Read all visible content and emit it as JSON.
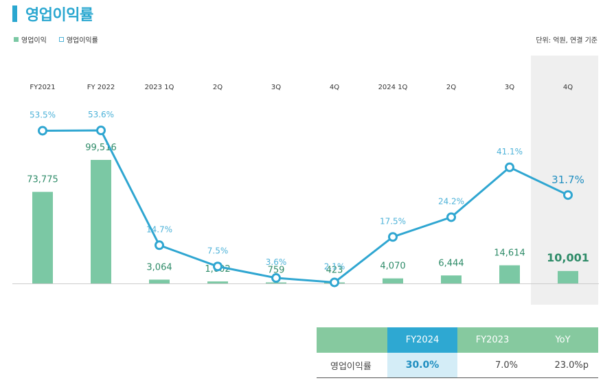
{
  "title": "영업이익률",
  "legend": {
    "bar_label": "영업이익",
    "line_label": "영업이익률"
  },
  "unit": "단위: 억원, 연결 기준",
  "chart_data": {
    "type": "bar",
    "categories": [
      "FY2021",
      "FY 2022",
      "2023 1Q",
      "2Q",
      "3Q",
      "4Q",
      "2024 1Q",
      "2Q",
      "3Q",
      "4Q"
    ],
    "series": [
      {
        "name": "영업이익",
        "type": "bar",
        "values": [
          73775,
          99516,
          3064,
          1602,
          759,
          423,
          4070,
          6444,
          14614,
          10001
        ],
        "labels": [
          "73,775",
          "99,516",
          "3,064",
          "1,602",
          "759",
          "423",
          "4,070",
          "6,444",
          "14,614",
          "10,001"
        ]
      },
      {
        "name": "영업이익률",
        "type": "line",
        "values": [
          53.5,
          53.6,
          14.7,
          7.5,
          3.6,
          2.1,
          17.5,
          24.2,
          41.1,
          31.7
        ],
        "labels": [
          "53.5%",
          "53.6%",
          "14.7%",
          "7.5%",
          "3.6%",
          "2.1%",
          "17.5%",
          "24.2%",
          "41.1%",
          "31.7%"
        ]
      }
    ],
    "highlight_category": "4Q",
    "bar_color": "#7bc8a4",
    "line_color": "#2fa6d1",
    "highlight_bg": "#efefef"
  },
  "summary_table": {
    "headers": [
      "",
      "FY2024",
      "FY2023",
      "YoY"
    ],
    "row": {
      "label": "영업이익률",
      "fy2024": "30.0%",
      "fy2023": "7.0%",
      "yoy": "23.0%p"
    }
  }
}
